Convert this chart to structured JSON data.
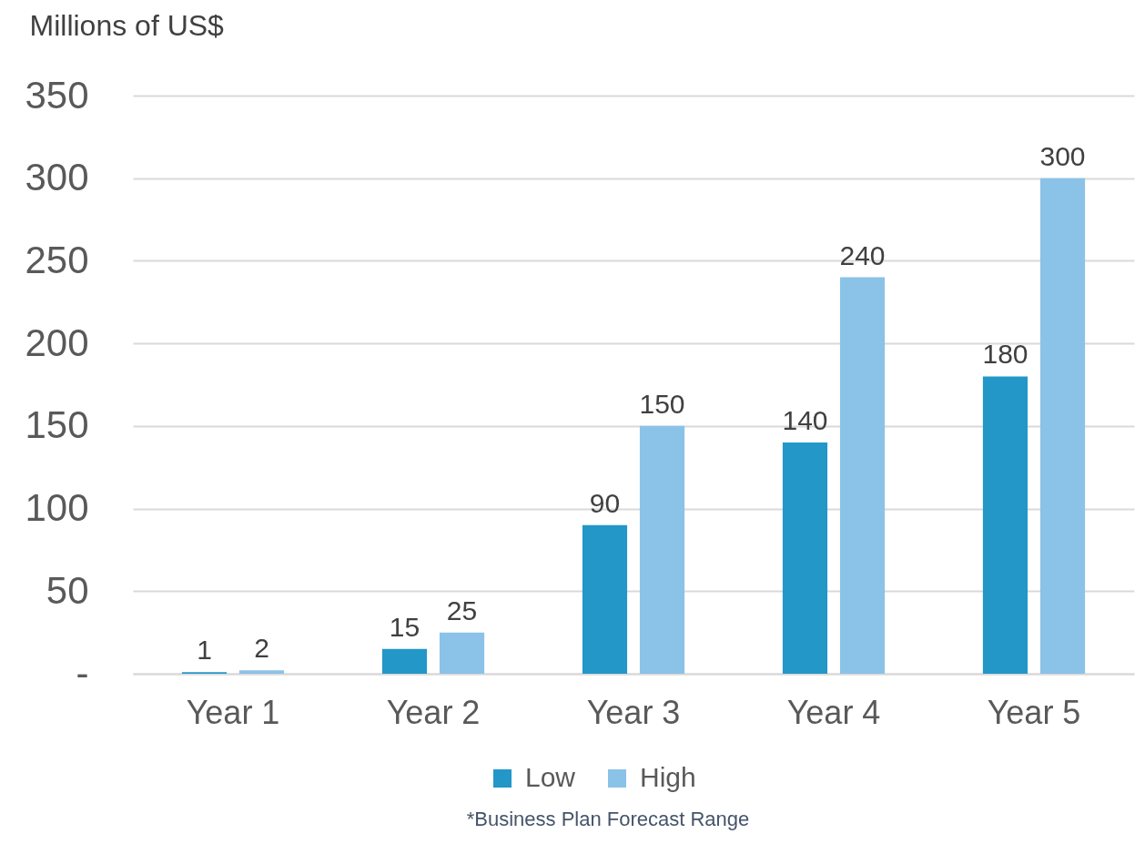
{
  "chart_data": {
    "type": "bar",
    "ylabel": "Millions of US$",
    "categories": [
      "Year 1",
      "Year 2",
      "Year 3",
      "Year 4",
      "Year 5"
    ],
    "series": [
      {
        "name": "Low",
        "color": "#2397c8",
        "values": [
          1,
          15,
          90,
          140,
          180
        ]
      },
      {
        "name": "High",
        "color": "#8bc2e8",
        "values": [
          2,
          25,
          150,
          240,
          300
        ]
      }
    ],
    "ylim": [
      0,
      350
    ],
    "yticks": [
      {
        "value": 0,
        "label": "-"
      },
      50,
      100,
      150,
      200,
      250,
      300,
      350
    ],
    "grid": "y",
    "legend": "bottom",
    "data_labels": true,
    "annotations": [
      "*Business Plan Forecast Range"
    ]
  }
}
